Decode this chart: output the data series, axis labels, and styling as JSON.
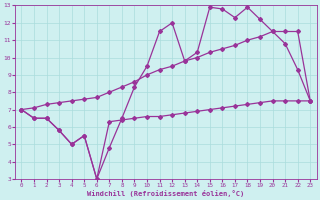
{
  "xlabel": "Windchill (Refroidissement éolien,°C)",
  "line1_x": [
    0,
    1,
    2,
    3,
    4,
    5,
    6,
    7,
    8,
    9,
    10,
    11,
    12,
    13,
    14,
    15,
    16,
    17,
    18,
    19,
    20,
    21,
    22,
    23
  ],
  "line1_y": [
    7.0,
    6.5,
    6.5,
    5.8,
    5.0,
    5.5,
    3.0,
    4.8,
    6.5,
    8.3,
    9.5,
    11.5,
    12.0,
    9.8,
    10.3,
    12.9,
    12.8,
    12.3,
    12.9,
    12.2,
    11.5,
    10.8,
    9.3,
    7.5
  ],
  "line2_x": [
    0,
    1,
    2,
    3,
    4,
    5,
    6,
    7,
    8,
    9,
    10,
    11,
    12,
    13,
    14,
    15,
    16,
    17,
    18,
    19,
    20,
    21,
    22,
    23
  ],
  "line2_y": [
    7.0,
    7.1,
    7.3,
    7.4,
    7.5,
    7.6,
    7.7,
    8.0,
    8.3,
    8.6,
    9.0,
    9.3,
    9.5,
    9.8,
    10.0,
    10.3,
    10.5,
    10.7,
    11.0,
    11.2,
    11.5,
    11.5,
    11.5,
    7.5
  ],
  "line3_x": [
    0,
    1,
    2,
    3,
    4,
    5,
    6,
    7,
    8,
    9,
    10,
    11,
    12,
    13,
    14,
    15,
    16,
    17,
    18,
    19,
    20,
    21,
    22,
    23
  ],
  "line3_y": [
    7.0,
    6.5,
    6.5,
    5.8,
    5.0,
    5.5,
    3.0,
    6.3,
    6.4,
    6.5,
    6.6,
    6.6,
    6.7,
    6.8,
    6.9,
    7.0,
    7.1,
    7.2,
    7.3,
    7.4,
    7.5,
    7.5,
    7.5,
    7.5
  ],
  "color": "#993399",
  "bg_color": "#cff0f0",
  "grid_color": "#aadddd",
  "xlim": [
    -0.5,
    23.5
  ],
  "ylim": [
    3,
    13
  ],
  "xticks": [
    0,
    1,
    2,
    3,
    4,
    5,
    6,
    7,
    8,
    9,
    10,
    11,
    12,
    13,
    14,
    15,
    16,
    17,
    18,
    19,
    20,
    21,
    22,
    23
  ],
  "yticks": [
    3,
    4,
    5,
    6,
    7,
    8,
    9,
    10,
    11,
    12,
    13
  ],
  "marker": "D",
  "markersize": 2.0,
  "linewidth": 0.9
}
